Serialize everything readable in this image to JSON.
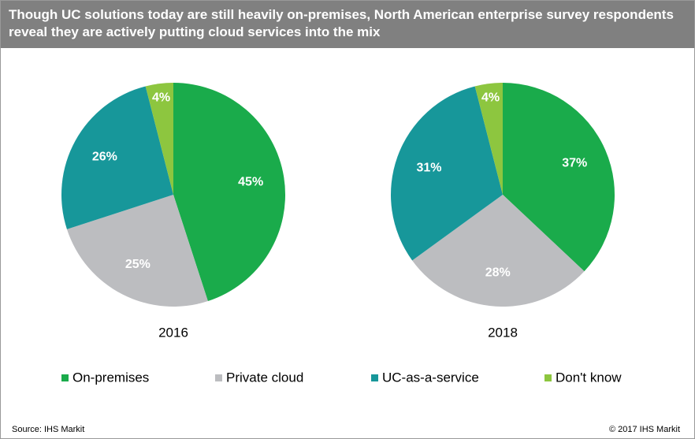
{
  "title": "Though UC solutions today are still heavily on-premises, North American enterprise survey respondents reveal they are actively putting cloud services into the mix",
  "source": "Source: IHS Markit",
  "copyright": "© 2017 IHS Markit",
  "chart_data": [
    {
      "type": "pie",
      "title": "2016",
      "categories": [
        "On-premises",
        "Private cloud",
        "UC-as-a-service",
        "Don't know"
      ],
      "values": [
        45,
        25,
        26,
        4
      ],
      "value_labels": [
        "45%",
        "25%",
        "26%",
        "4%"
      ],
      "colors": [
        "#1aab4b",
        "#bcbdc0",
        "#17979a",
        "#8dc63f"
      ]
    },
    {
      "type": "pie",
      "title": "2018",
      "categories": [
        "On-premises",
        "Private cloud",
        "UC-as-a-service",
        "Don't know"
      ],
      "values": [
        37,
        28,
        31,
        4
      ],
      "value_labels": [
        "37%",
        "28%",
        "31%",
        "4%"
      ],
      "colors": [
        "#1aab4b",
        "#bcbdc0",
        "#17979a",
        "#8dc63f"
      ]
    }
  ]
}
